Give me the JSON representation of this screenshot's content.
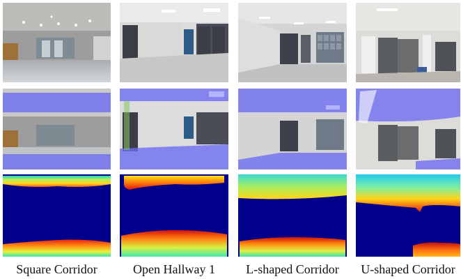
{
  "captions": [
    "Square Corridor",
    "Open Hallway 1",
    "L-shaped Corridor",
    "U-shaped Corridor"
  ],
  "colors": {
    "segmentation_overlay": "#6e6ef2",
    "depth_background": "#00008b"
  },
  "rows": [
    "photo",
    "segmentation",
    "depth"
  ]
}
